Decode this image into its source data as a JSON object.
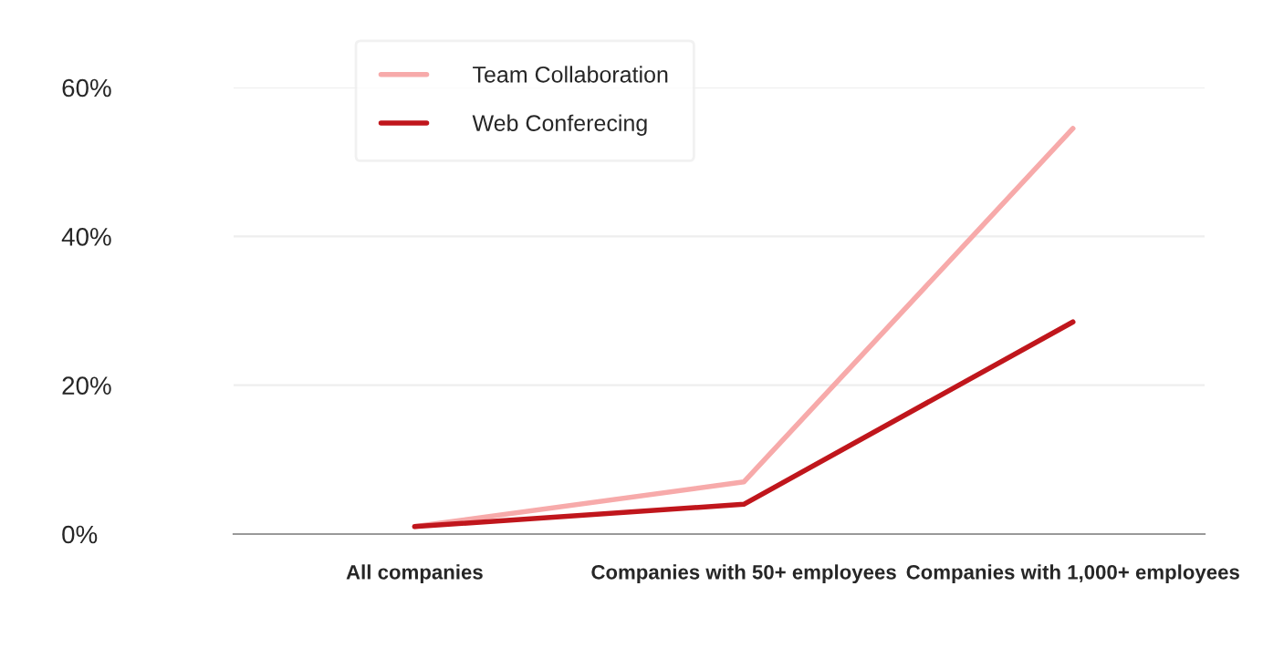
{
  "chart_data": {
    "type": "line",
    "categories": [
      "All companies",
      "Companies with 50+ employees",
      "Companies with 1,000+ employees"
    ],
    "series": [
      {
        "name": "Team Collaboration",
        "color": "#f7aaaa",
        "values": [
          1,
          7,
          54.5
        ]
      },
      {
        "name": "Web Conferecing",
        "color": "#c0161c",
        "values": [
          1,
          4,
          28.5
        ]
      }
    ],
    "ylim": [
      0,
      60
    ],
    "yticks": [
      {
        "value": 0,
        "label": "0%"
      },
      {
        "value": 20,
        "label": "20%"
      },
      {
        "value": 40,
        "label": "40%"
      },
      {
        "value": 60,
        "label": "60%"
      }
    ],
    "grid": "y",
    "legend": "top",
    "marker": "none",
    "line_style": "solid"
  }
}
